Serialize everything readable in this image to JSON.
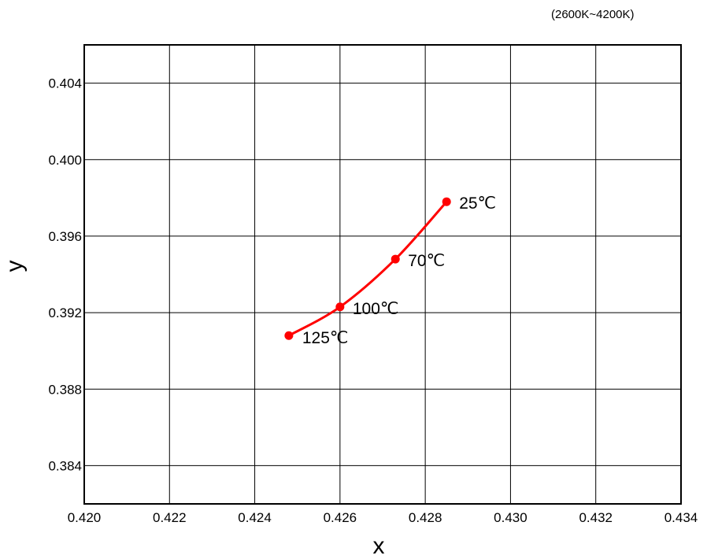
{
  "chart_data": {
    "type": "scatter",
    "note": "(2600K~4200K)",
    "xlabel": "x",
    "ylabel": "y",
    "xlim": [
      0.42,
      0.434
    ],
    "ylim": [
      0.382,
      0.406
    ],
    "x_ticks": [
      "0.420",
      "0.422",
      "0.424",
      "0.426",
      "0.428",
      "0.430",
      "0.432",
      "0.434"
    ],
    "y_ticks": [
      "0.384",
      "0.388",
      "0.392",
      "0.396",
      "0.400",
      "0.404"
    ],
    "x_tick_values": [
      0.42,
      0.422,
      0.424,
      0.426,
      0.428,
      0.43,
      0.432,
      0.434
    ],
    "y_tick_values": [
      0.384,
      0.388,
      0.392,
      0.396,
      0.4,
      0.404
    ],
    "grid": true,
    "series": [
      {
        "color": "#ff0000",
        "points": [
          {
            "label": "25℃",
            "x": 0.4285,
            "y": 0.3978
          },
          {
            "label": "70℃",
            "x": 0.4273,
            "y": 0.3948
          },
          {
            "label": "100℃",
            "x": 0.426,
            "y": 0.3923
          },
          {
            "label": "125℃",
            "x": 0.4248,
            "y": 0.3908
          }
        ]
      }
    ]
  }
}
